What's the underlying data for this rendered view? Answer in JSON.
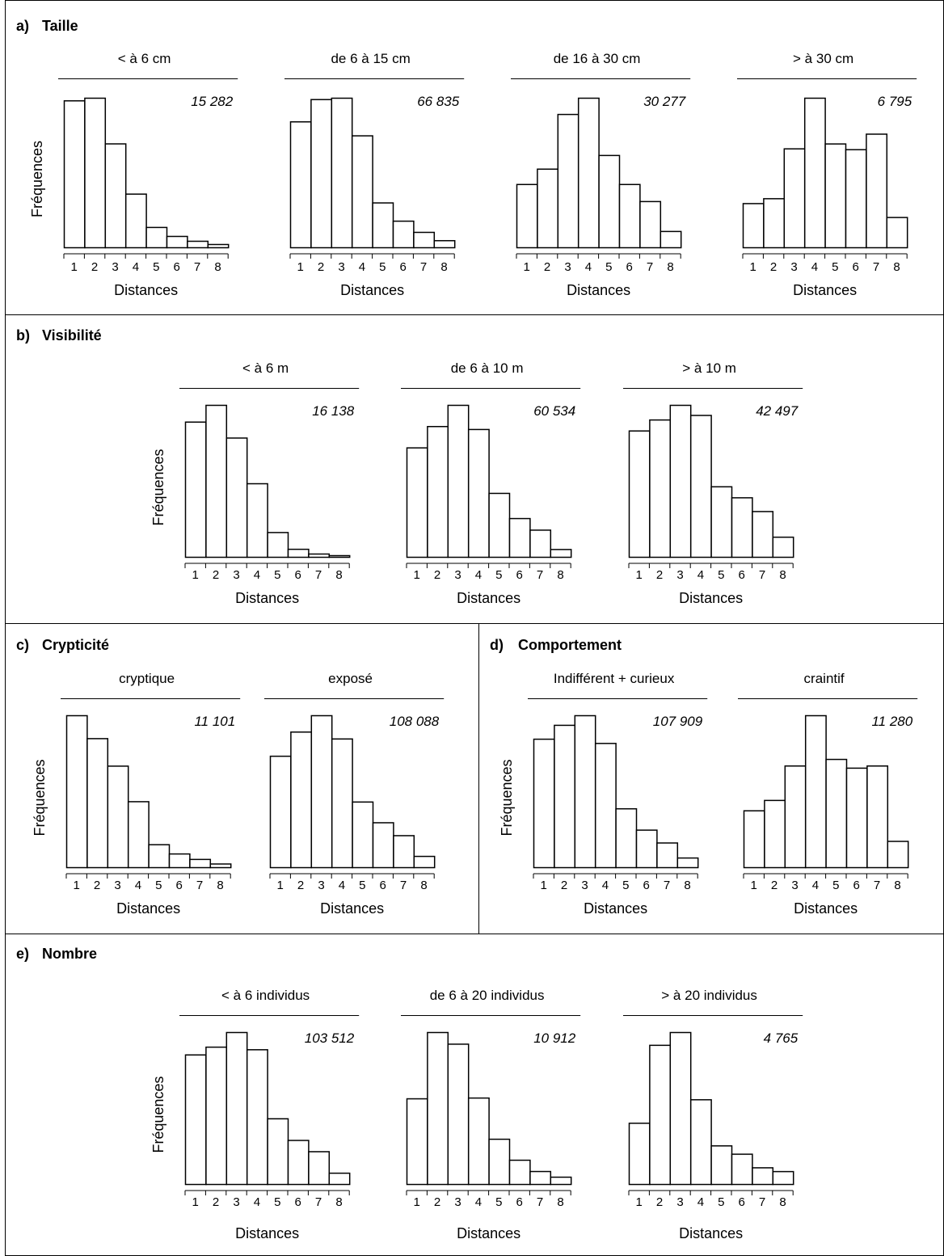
{
  "figure": {
    "x_label": "Distances",
    "y_label": "Fréquences",
    "panels": [
      {
        "letter": "a)",
        "title": "Taille"
      },
      {
        "letter": "b)",
        "title": "Visibilité"
      },
      {
        "letter": "c)",
        "title": "Crypticité"
      },
      {
        "letter": "d)",
        "title": "Comportement"
      },
      {
        "letter": "e)",
        "title": "Nombre"
      }
    ]
  },
  "chart_data": [
    {
      "type": "bar",
      "panel": "a)",
      "title": "< à 6 cm",
      "total": "15 282",
      "categories": [
        "1",
        "2",
        "3",
        "4",
        "5",
        "6",
        "7",
        "8"
      ],
      "values": [
        100,
        101.8,
        70.7,
        36.5,
        13.8,
        7.7,
        4.4,
        2.2
      ],
      "xlabel": "Distances",
      "ylabel": "Fréquences"
    },
    {
      "type": "bar",
      "panel": "a)",
      "title": "de 6 à 15 cm",
      "total": "66 835",
      "categories": [
        "1",
        "2",
        "3",
        "4",
        "5",
        "6",
        "7",
        "8"
      ],
      "values": [
        100,
        117.7,
        118.8,
        88.9,
        35.6,
        21.1,
        12.2,
        5.6
      ],
      "xlabel": "Distances",
      "ylabel": ""
    },
    {
      "type": "bar",
      "panel": "a)",
      "title": "de 16 à 30 cm",
      "total": "30 277",
      "categories": [
        "1",
        "2",
        "3",
        "4",
        "5",
        "6",
        "7",
        "8"
      ],
      "values": [
        100,
        124.3,
        210.8,
        236.5,
        145.9,
        100,
        73,
        25.7
      ],
      "xlabel": "Distances",
      "ylabel": ""
    },
    {
      "type": "bar",
      "panel": "a)",
      "title": "> à 30 cm",
      "total": "6 795",
      "categories": [
        "1",
        "2",
        "3",
        "4",
        "5",
        "6",
        "7",
        "8"
      ],
      "values": [
        100,
        111.1,
        224.1,
        338.9,
        235.2,
        222.2,
        257.4,
        68.5
      ],
      "xlabel": "Distances",
      "ylabel": ""
    },
    {
      "type": "bar",
      "panel": "b)",
      "title": "< à 6 m",
      "total": "16 138",
      "categories": [
        "1",
        "2",
        "3",
        "4",
        "5",
        "6",
        "7",
        "8"
      ],
      "values": [
        100,
        112.4,
        88.2,
        54.4,
        18.3,
        5.9,
        2.4,
        1.2
      ],
      "xlabel": "Distances",
      "ylabel": "Fréquences"
    },
    {
      "type": "bar",
      "panel": "b)",
      "title": "de 6 à 10 m",
      "total": "60 534",
      "categories": [
        "1",
        "2",
        "3",
        "4",
        "5",
        "6",
        "7",
        "8"
      ],
      "values": [
        100,
        119.5,
        138.9,
        116.8,
        58.4,
        35.4,
        24.8,
        7.1
      ],
      "xlabel": "Distances",
      "ylabel": ""
    },
    {
      "type": "bar",
      "panel": "b)",
      "title": "> à 10 m",
      "total": "42 497",
      "categories": [
        "1",
        "2",
        "3",
        "4",
        "5",
        "6",
        "7",
        "8"
      ],
      "values": [
        100,
        108.7,
        120.3,
        112.3,
        55.8,
        47.1,
        36.2,
        15.9
      ],
      "xlabel": "Distances",
      "ylabel": ""
    },
    {
      "type": "bar",
      "panel": "c)",
      "title": "cryptique",
      "total": "11 101",
      "categories": [
        "1",
        "2",
        "3",
        "4",
        "5",
        "6",
        "7",
        "8"
      ],
      "values": [
        100,
        84.9,
        66.8,
        43.4,
        15.1,
        9,
        5.4,
        2.4
      ],
      "xlabel": "Distances",
      "ylabel": "Fréquences"
    },
    {
      "type": "bar",
      "panel": "c)",
      "title": "exposé",
      "total": "108 088",
      "categories": [
        "1",
        "2",
        "3",
        "4",
        "5",
        "6",
        "7",
        "8"
      ],
      "values": [
        100,
        121.7,
        136.4,
        115.5,
        58.9,
        40.3,
        28.7,
        10.1
      ],
      "xlabel": "Distances",
      "ylabel": ""
    },
    {
      "type": "bar",
      "panel": "d)",
      "title": "Indifférent + curieux",
      "total": "107 909",
      "categories": [
        "1",
        "2",
        "3",
        "4",
        "5",
        "6",
        "7",
        "8"
      ],
      "values": [
        100,
        110.8,
        118.3,
        96.7,
        45.8,
        29.2,
        19.2,
        7.5
      ],
      "xlabel": "Distances",
      "ylabel": "Fréquences"
    },
    {
      "type": "bar",
      "panel": "d)",
      "title": "craintif",
      "total": "11 280",
      "categories": [
        "1",
        "2",
        "3",
        "4",
        "5",
        "6",
        "7",
        "8"
      ],
      "values": [
        100,
        118.2,
        178.8,
        267.3,
        190.4,
        175,
        178.8,
        46.2
      ],
      "xlabel": "Distances",
      "ylabel": ""
    },
    {
      "type": "bar",
      "panel": "e)",
      "title": "< à 6 individus",
      "total": "103 512",
      "categories": [
        "1",
        "2",
        "3",
        "4",
        "5",
        "6",
        "7",
        "8"
      ],
      "values": [
        100,
        106,
        117.3,
        104,
        50.7,
        34,
        25.3,
        8.7
      ],
      "xlabel": "Distances",
      "ylabel": "Fréquences"
    },
    {
      "type": "bar",
      "panel": "e)",
      "title": "de 6 à 20 individus",
      "total": "10 912",
      "categories": [
        "1",
        "2",
        "3",
        "4",
        "5",
        "6",
        "7",
        "8"
      ],
      "values": [
        100,
        177.4,
        163.8,
        100.9,
        52.8,
        28.3,
        15.1,
        8.5
      ],
      "xlabel": "Distances",
      "ylabel": ""
    },
    {
      "type": "bar",
      "panel": "e)",
      "title": "> à 20 individus",
      "total": "4 765",
      "categories": [
        "1",
        "2",
        "3",
        "4",
        "5",
        "6",
        "7",
        "8"
      ],
      "values": [
        100,
        227.2,
        248.1,
        138.3,
        63,
        49.4,
        27.2,
        21
      ],
      "xlabel": "Distances",
      "ylabel": ""
    }
  ]
}
